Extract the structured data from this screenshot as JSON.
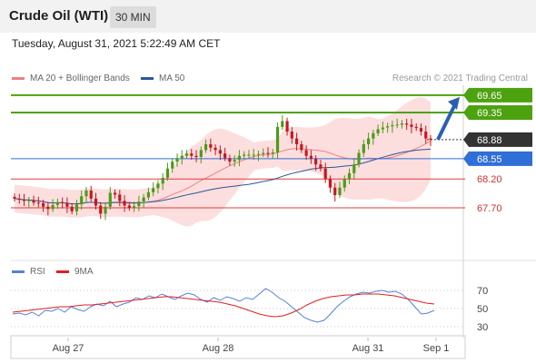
{
  "header": {
    "title": "Crude Oil (WTI)",
    "timeframe": "30 MIN"
  },
  "timestamp": "Tuesday, August 31, 2021 5:22:49 AM CET",
  "legend": {
    "bollinger": {
      "label": "MA 20 + Bollinger Bands",
      "color": "#f08080"
    },
    "ma50": {
      "label": "MA 50",
      "color": "#2b5797"
    },
    "rsi": {
      "label": "RSI",
      "color": "#5a7fd6"
    },
    "rsi_ma": {
      "label": "9MA",
      "color": "#e02020"
    }
  },
  "credit": "Research © 2021 Trading Central",
  "chart_data": [
    {
      "type": "candlestick",
      "title": "Crude Oil (WTI)",
      "x_ticks": [
        "Aug 27",
        "Aug 28",
        "Aug 31",
        "Sep 1"
      ],
      "ylim": [
        66.9,
        69.82
      ],
      "levels": [
        {
          "value": 69.65,
          "label": "69.65",
          "kind": "resistance",
          "color": "#4ca20f"
        },
        {
          "value": 69.35,
          "label": "69.35",
          "kind": "resistance",
          "color": "#4ca20f"
        },
        {
          "value": 68.88,
          "label": "68.88",
          "kind": "last",
          "color": "#333333"
        },
        {
          "value": 68.55,
          "label": "68.55",
          "kind": "pivot",
          "color": "#2f6fd6"
        },
        {
          "value": 68.2,
          "label": "68.20",
          "kind": "support",
          "color": "#e33b3b"
        },
        {
          "value": 67.7,
          "label": "67.70",
          "kind": "support",
          "color": "#e33b3b"
        }
      ],
      "forecast_arrow": {
        "from": 68.88,
        "to": 69.65,
        "direction": "up"
      },
      "close_series": [
        67.86,
        67.84,
        67.82,
        67.83,
        67.79,
        67.78,
        67.72,
        67.68,
        67.75,
        67.8,
        67.78,
        67.72,
        67.64,
        67.76,
        67.9,
        68.0,
        67.86,
        67.74,
        67.6,
        67.72,
        67.96,
        67.93,
        67.82,
        67.74,
        67.7,
        67.73,
        67.81,
        67.88,
        67.97,
        68.04,
        68.12,
        68.22,
        68.38,
        68.5,
        68.56,
        68.6,
        68.64,
        68.6,
        68.58,
        68.7,
        68.8,
        68.74,
        68.7,
        68.64,
        68.56,
        68.5,
        68.53,
        68.6,
        68.62,
        68.62,
        68.62,
        68.63,
        68.65,
        68.64,
        68.66,
        69.1,
        69.2,
        69.02,
        68.9,
        68.8,
        68.7,
        68.6,
        68.55,
        68.45,
        68.38,
        68.2,
        68.05,
        67.92,
        68.05,
        68.2,
        68.3,
        68.45,
        68.65,
        68.8,
        68.9,
        68.99,
        69.06,
        69.09,
        69.11,
        69.13,
        69.14,
        69.16,
        69.14,
        69.1,
        69.08,
        69.02,
        68.9,
        68.88
      ]
    },
    {
      "type": "line",
      "title": "RSI",
      "ylim": [
        20,
        80
      ],
      "y_ticks": [
        70,
        50,
        30
      ],
      "series": [
        {
          "name": "RSI",
          "values": [
            44,
            45,
            43,
            46,
            42,
            48,
            47,
            50,
            46,
            52,
            49,
            47,
            52,
            55,
            53,
            58,
            52,
            55,
            57,
            62,
            60,
            64,
            62,
            66,
            63,
            60,
            64,
            67,
            65,
            60,
            57,
            62,
            59,
            63,
            61,
            58,
            62,
            60,
            66,
            72,
            68,
            62,
            58,
            52,
            46,
            40,
            37,
            35,
            37,
            44,
            52,
            58,
            63,
            66,
            68,
            67,
            69,
            70,
            68,
            69,
            66,
            60,
            52,
            44,
            45,
            48
          ]
        },
        {
          "name": "9MA",
          "values": [
            46,
            47,
            48,
            49,
            50,
            51,
            52,
            52,
            53,
            54,
            54,
            55,
            56,
            57,
            58,
            59,
            60,
            61,
            62,
            63,
            63,
            62,
            61,
            60,
            59,
            58,
            57,
            55,
            53,
            50,
            47,
            44,
            42,
            41,
            42,
            45,
            49,
            54,
            58,
            61,
            63,
            64,
            65,
            65,
            66,
            66,
            66,
            65,
            64,
            62,
            60,
            58,
            56,
            55
          ]
        }
      ]
    }
  ]
}
